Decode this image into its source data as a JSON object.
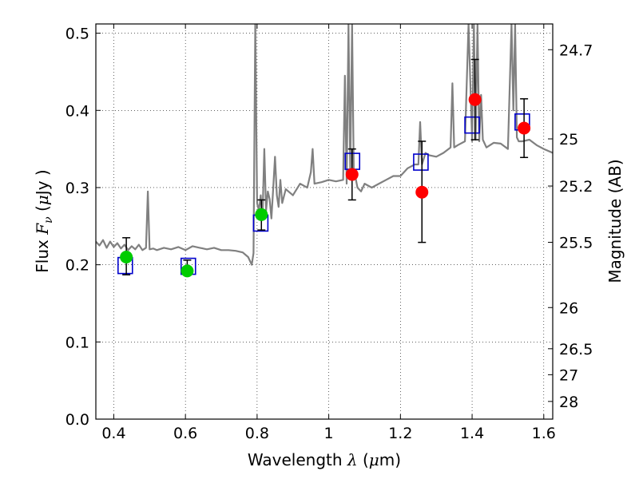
{
  "chart_data": {
    "type": "scatter",
    "xlabel": {
      "text": "Wavelength",
      "symbol": "λ",
      "unit_open": "(",
      "unit_mu": "μ",
      "unit_rest": "m)"
    },
    "ylabel": {
      "text": "Flux",
      "symbol": "F",
      "subscript": "ν",
      "unit_open": "(",
      "unit_mu": "μ",
      "unit_rest": "Jy )"
    },
    "y2label": "Magnitude (AB)",
    "xlim": [
      0.35,
      1.625
    ],
    "ylim": [
      0.0,
      0.512
    ],
    "x_ticks": [
      0.4,
      0.6,
      0.8,
      1.0,
      1.2,
      1.4,
      1.6
    ],
    "x_tick_labels": [
      "0.4",
      "0.6",
      "0.8",
      "1",
      "1.2",
      "1.4",
      "1.6"
    ],
    "y_ticks": [
      0.0,
      0.1,
      0.2,
      0.3,
      0.4,
      0.5
    ],
    "y_tick_labels": [
      "0.0",
      "0.1",
      "0.2",
      "0.3",
      "0.4",
      "0.5"
    ],
    "magnitude_ticks": [
      24.7,
      25,
      25.2,
      25.5,
      26,
      26.5,
      27,
      28
    ],
    "magnitude_tick_labels": [
      "24.7",
      "25",
      "25.2",
      "25.5",
      "26",
      "26.5",
      "27",
      "28"
    ],
    "grid": true,
    "colors": {
      "spectrum": "#808080",
      "optical_points": "#00cc00",
      "nir_points": "#ff0000",
      "model_boxes": "#0000cc",
      "errorbars": "#000000"
    },
    "spectrum": {
      "x": [
        0.35,
        0.36,
        0.37,
        0.38,
        0.39,
        0.4,
        0.41,
        0.42,
        0.43,
        0.44,
        0.45,
        0.46,
        0.47,
        0.48,
        0.49,
        0.495,
        0.5,
        0.51,
        0.52,
        0.54,
        0.56,
        0.58,
        0.6,
        0.62,
        0.64,
        0.66,
        0.68,
        0.7,
        0.72,
        0.74,
        0.76,
        0.775,
        0.785,
        0.79,
        0.795,
        0.8,
        0.805,
        0.81,
        0.815,
        0.82,
        0.825,
        0.83,
        0.835,
        0.84,
        0.845,
        0.85,
        0.855,
        0.86,
        0.865,
        0.87,
        0.88,
        0.9,
        0.92,
        0.94,
        0.95,
        0.955,
        0.96,
        0.98,
        1.0,
        1.02,
        1.04,
        1.045,
        1.05,
        1.055,
        1.06,
        1.065,
        1.07,
        1.075,
        1.08,
        1.09,
        1.1,
        1.12,
        1.14,
        1.16,
        1.18,
        1.2,
        1.22,
        1.24,
        1.25,
        1.255,
        1.26,
        1.27,
        1.28,
        1.3,
        1.32,
        1.34,
        1.345,
        1.35,
        1.36,
        1.38,
        1.39,
        1.4,
        1.405,
        1.41,
        1.415,
        1.42,
        1.425,
        1.43,
        1.44,
        1.46,
        1.48,
        1.5,
        1.51,
        1.515,
        1.52,
        1.525,
        1.53,
        1.54,
        1.56,
        1.58,
        1.6,
        1.625
      ],
      "y": [
        0.23,
        0.225,
        0.232,
        0.222,
        0.23,
        0.223,
        0.228,
        0.221,
        0.226,
        0.219,
        0.224,
        0.22,
        0.226,
        0.219,
        0.222,
        0.295,
        0.22,
        0.221,
        0.219,
        0.222,
        0.22,
        0.223,
        0.219,
        0.224,
        0.222,
        0.22,
        0.222,
        0.219,
        0.219,
        0.218,
        0.216,
        0.21,
        0.2,
        0.215,
        0.512,
        0.28,
        0.27,
        0.29,
        0.26,
        0.35,
        0.27,
        0.295,
        0.285,
        0.26,
        0.3,
        0.34,
        0.29,
        0.275,
        0.31,
        0.28,
        0.298,
        0.29,
        0.305,
        0.3,
        0.32,
        0.35,
        0.305,
        0.307,
        0.31,
        0.308,
        0.31,
        0.445,
        0.305,
        0.512,
        0.32,
        0.512,
        0.31,
        0.312,
        0.3,
        0.295,
        0.305,
        0.3,
        0.305,
        0.31,
        0.315,
        0.315,
        0.325,
        0.33,
        0.33,
        0.385,
        0.33,
        0.345,
        0.342,
        0.34,
        0.345,
        0.352,
        0.435,
        0.352,
        0.355,
        0.36,
        0.512,
        0.36,
        0.512,
        0.362,
        0.512,
        0.36,
        0.42,
        0.362,
        0.352,
        0.358,
        0.357,
        0.35,
        0.512,
        0.4,
        0.512,
        0.365,
        0.36,
        0.36,
        0.362,
        0.355,
        0.35,
        0.345
      ]
    },
    "series": [
      {
        "marker": "circle",
        "points": [
          {
            "x": 0.435,
            "y": 0.21,
            "err": [
              0.187,
              0.235
            ]
          },
          {
            "x": 0.605,
            "y": 0.192,
            "err": [
              0.187,
              0.206
            ]
          },
          {
            "x": 0.812,
            "y": 0.265,
            "err": [
              0.245,
              0.284
            ]
          }
        ]
      },
      {
        "marker": "circle",
        "points": [
          {
            "x": 1.065,
            "y": 0.317,
            "err": [
              0.284,
              0.35
            ]
          },
          {
            "x": 1.26,
            "y": 0.294,
            "err": [
              0.229,
              0.36
            ]
          },
          {
            "x": 1.408,
            "y": 0.414,
            "err": [
              0.362,
              0.466
            ]
          },
          {
            "x": 1.545,
            "y": 0.377,
            "err": [
              0.339,
              0.415
            ]
          }
        ]
      },
      {
        "marker": "square",
        "points": [
          {
            "x": 0.432,
            "y": 0.199
          },
          {
            "x": 0.608,
            "y": 0.198
          },
          {
            "x": 0.81,
            "y": 0.254
          },
          {
            "x": 1.066,
            "y": 0.334
          },
          {
            "x": 1.257,
            "y": 0.333
          },
          {
            "x": 1.4,
            "y": 0.381
          },
          {
            "x": 1.54,
            "y": 0.385
          }
        ]
      }
    ]
  }
}
